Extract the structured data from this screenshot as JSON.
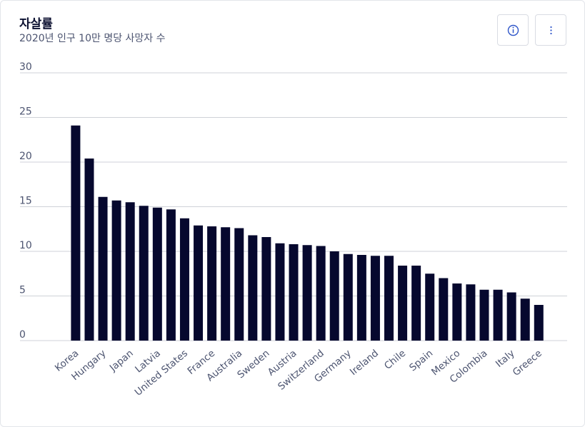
{
  "header": {
    "title": "자살률",
    "subtitle": "2020년 인구 10만 명당 사망자 수"
  },
  "buttons": {
    "info_icon": "info-circle-icon",
    "more_icon": "more-vertical-icon"
  },
  "colors": {
    "bar": "#06082e",
    "grid": "#cfd2d8",
    "axis_text": "#4c5470"
  },
  "chart_data": {
    "type": "bar",
    "title": "자살률",
    "subtitle": "2020년 인구 10만 명당 사망자 수",
    "xlabel": "",
    "ylabel": "",
    "ylim": [
      0,
      30
    ],
    "yticks": [
      0,
      5,
      10,
      15,
      20,
      25,
      30
    ],
    "grid": true,
    "categories": [
      "Korea",
      "",
      "Hungary",
      "",
      "Japan",
      "",
      "Latvia",
      "",
      "United States",
      "",
      "France",
      "",
      "Australia",
      "",
      "Sweden",
      "",
      "Austria",
      "",
      "Switzerland",
      "",
      "Germany",
      "",
      "Ireland",
      "",
      "Chile",
      "",
      "Spain",
      "",
      "Mexico",
      "",
      "Colombia",
      "",
      "Italy",
      "",
      "Greece"
    ],
    "values": [
      24.1,
      20.4,
      16.1,
      15.7,
      15.5,
      15.1,
      14.9,
      14.7,
      13.7,
      12.9,
      12.8,
      12.7,
      12.6,
      11.8,
      11.6,
      10.9,
      10.8,
      10.7,
      10.6,
      10.0,
      9.7,
      9.6,
      9.5,
      9.5,
      8.4,
      8.4,
      7.5,
      7.0,
      6.4,
      6.3,
      5.7,
      5.7,
      5.4,
      4.7,
      4.0
    ]
  }
}
